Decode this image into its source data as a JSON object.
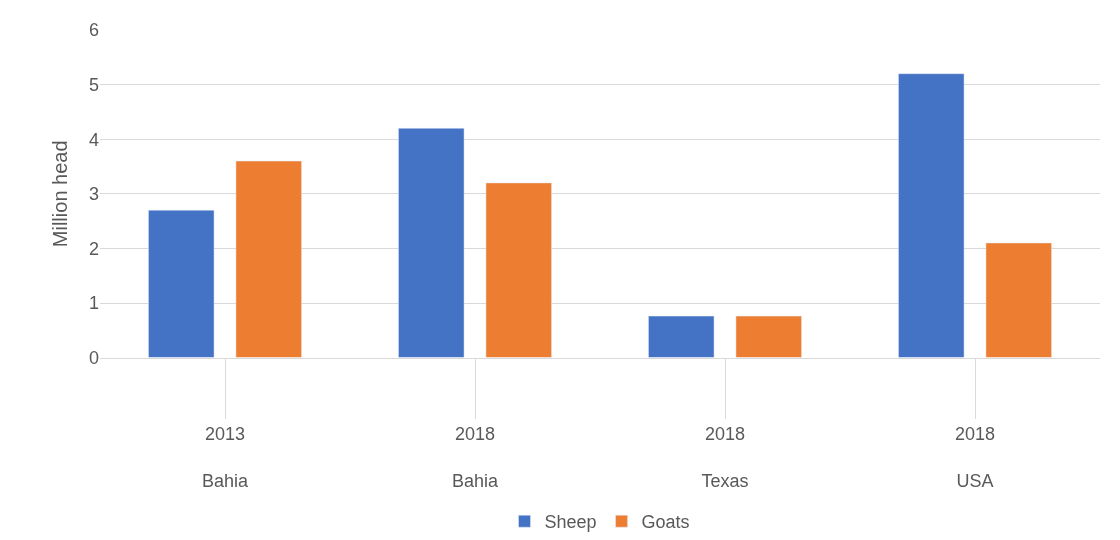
{
  "chart_data": {
    "type": "bar",
    "ylabel": "Million head",
    "categories": [
      "2013\nBahia",
      "2018\nBahia",
      "2018\nTexas",
      "2018\nUSA"
    ],
    "series": [
      {
        "name": "Sheep",
        "color": "#4472c4",
        "values": [
          2.7,
          4.2,
          0.76,
          5.2
        ]
      },
      {
        "name": "Goats",
        "color": "#ed7d31",
        "values": [
          3.6,
          3.2,
          0.76,
          2.1
        ]
      }
    ],
    "ylim": [
      0,
      6
    ],
    "yticks": [
      0,
      1,
      2,
      3,
      4,
      5,
      6
    ],
    "grid": "y",
    "legend": "bottom"
  }
}
